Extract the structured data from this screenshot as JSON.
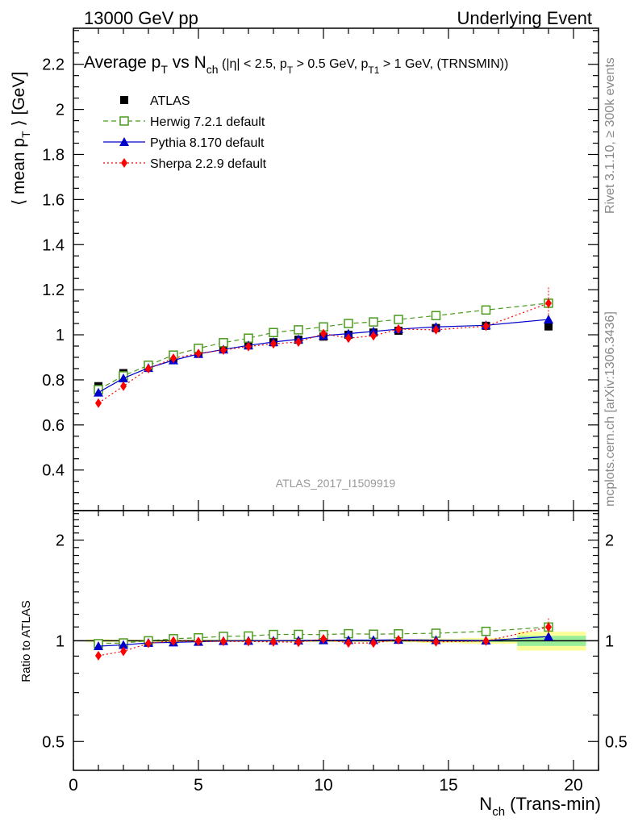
{
  "header": {
    "left": "13000 GeV pp",
    "right": "Underlying Event"
  },
  "side_labels": {
    "rivet": "Rivet 3.1.10, ≥ 300k events",
    "mcplots": "mcplots.cern.ch [arXiv:1306.3436]"
  },
  "watermark": "ATLAS_2017_I1509919",
  "chart_data": {
    "type": "scatter",
    "title_parts": {
      "t1": "Average p",
      "t1sub": "T",
      "t2": " vs N",
      "t2sub": "ch",
      "t3": " (|η| < 2.5, p",
      "t3sub": "T",
      "t4": " > 0.5 GeV, p",
      "t4sub": "T1",
      "t5": " > 1 GeV, (TRNSMIN))"
    },
    "ylabel": {
      "main": "⟨ mean p",
      "sub": "T",
      "tail": " ⟩ [GeV]"
    },
    "xlabel": {
      "main": "N",
      "sub": "ch",
      "tail": " (Trans-min)"
    },
    "ratio_ylabel": "Ratio to ATLAS",
    "xlim": [
      0,
      21
    ],
    "ylim": [
      0.22,
      2.36
    ],
    "ratio_ylim": [
      0.41,
      2.45
    ],
    "ratio_scale": "log",
    "xticks": [
      0,
      5,
      10,
      15,
      20
    ],
    "xtick_labels": [
      "0",
      "5",
      "10",
      "15",
      "20"
    ],
    "yticks": [
      0.4,
      0.6,
      0.8,
      1,
      1.2,
      1.4,
      1.6,
      1.8,
      2,
      2.2
    ],
    "ytick_labels": [
      "0.4",
      "0.6",
      "0.8",
      "1",
      "1.2",
      "1.4",
      "1.6",
      "1.8",
      "2",
      "2.2"
    ],
    "ratio_yticks": [
      0.5,
      1,
      2
    ],
    "ratio_ytick_labels": [
      "0.5",
      "1",
      "2"
    ],
    "x": [
      1,
      2,
      3,
      4,
      5,
      6,
      7,
      8,
      9,
      10,
      11,
      12,
      13,
      14.5,
      16.5,
      19
    ],
    "series": [
      {
        "name": "ATLAS",
        "color": "#000000",
        "marker": "square",
        "values": [
          0.772,
          0.83,
          0.865,
          0.897,
          0.921,
          0.936,
          0.953,
          0.967,
          0.978,
          0.992,
          1.0,
          1.01,
          1.018,
          1.03,
          1.04,
          1.037
        ]
      },
      {
        "name": "Herwig 7.2.1 default",
        "color": "#4a9a1e",
        "marker": "open-square",
        "dash": "6,4",
        "values": [
          0.757,
          0.818,
          0.865,
          0.91,
          0.94,
          0.965,
          0.985,
          1.01,
          1.022,
          1.035,
          1.05,
          1.057,
          1.068,
          1.085,
          1.11,
          1.14
        ]
      },
      {
        "name": "Pythia 8.170 default",
        "color": "#0000cc",
        "marker": "triangle",
        "values": [
          0.744,
          0.807,
          0.853,
          0.887,
          0.915,
          0.935,
          0.953,
          0.968,
          0.98,
          0.996,
          1.005,
          1.015,
          1.025,
          1.035,
          1.042,
          1.068
        ]
      },
      {
        "name": "Sherpa 2.2.9 default",
        "color": "#ff0000",
        "marker": "diamond",
        "dash": "2,3",
        "values": [
          0.697,
          0.772,
          0.85,
          0.896,
          0.917,
          0.932,
          0.948,
          0.96,
          0.968,
          1.005,
          0.985,
          0.995,
          1.025,
          1.022,
          1.038,
          1.14
        ]
      }
    ],
    "legend_position": "top-left"
  }
}
